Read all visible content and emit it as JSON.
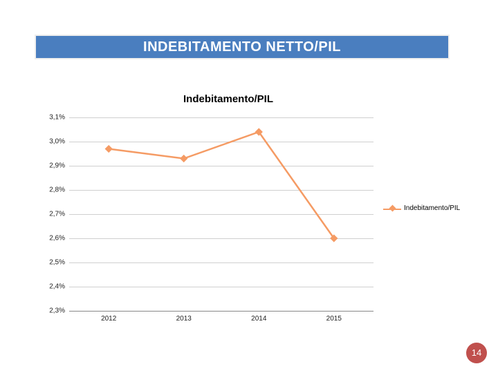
{
  "title": "INDEBITAMENTO NETTO/PIL",
  "title_bg": "#4a7ebf",
  "title_color": "#ffffff",
  "page_number": "14",
  "page_num_bg": "#c0504d",
  "chart": {
    "type": "line",
    "title": "Indebitamento/PIL",
    "background_color": "#ffffff",
    "grid_color": "#cfcfcf",
    "axis_color": "#888888",
    "text_color": "#222222",
    "label_fontsize": 10,
    "title_fontsize": 15,
    "ymin": 2.3,
    "ymax": 3.1,
    "ytick_step": 0.1,
    "ylabels": [
      "3,1%",
      "3,0%",
      "2,9%",
      "2,8%",
      "2,7%",
      "2,6%",
      "2,5%",
      "2,4%",
      "2,3%"
    ],
    "xlabels": [
      "2012",
      "2013",
      "2014",
      "2015"
    ],
    "series": {
      "label": "Indebitamento/PIL",
      "color": "#f59b64",
      "line_width": 2.5,
      "marker": "diamond",
      "marker_size": 8,
      "values": [
        2.97,
        2.93,
        3.04,
        2.6
      ]
    }
  }
}
